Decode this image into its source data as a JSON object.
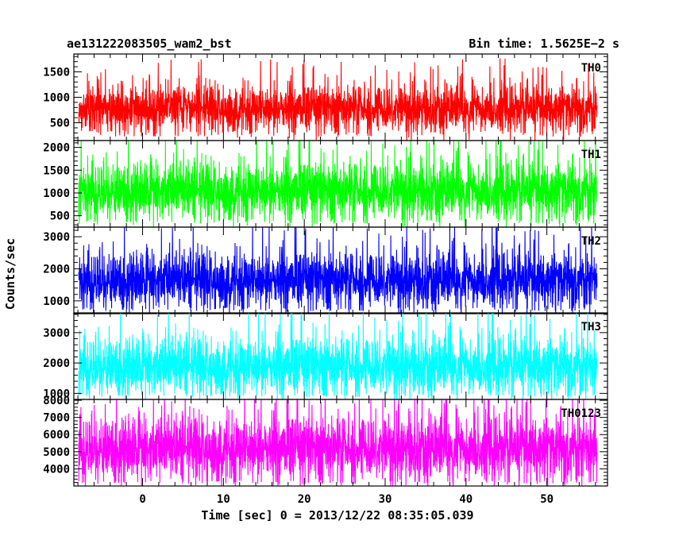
{
  "header": {
    "left_title": "ae131222083505_wam2_bst",
    "right_title": "Bin time: 1.5625E−2 s"
  },
  "axes": {
    "xlabel": "Time [sec] 0 = 2013/12/22 08:35:05.039",
    "ylabel": "Counts/sec"
  },
  "chart_data": {
    "type": "line",
    "x_range": [
      -8.5,
      57.5
    ],
    "x_data_range": [
      -7.9,
      56.2
    ],
    "x_ticks": [
      0,
      10,
      20,
      30,
      40,
      50
    ],
    "x_tick_labels": [
      "0",
      "10",
      "20",
      "30",
      "40",
      "50"
    ],
    "bin_time_s": 0.015625,
    "grid": false,
    "panels": [
      {
        "name": "TH0",
        "color": "#ff0000",
        "ylim": [
          150,
          1850
        ],
        "ytick_labels": [
          "500",
          "1000",
          "1500"
        ],
        "mean": 780,
        "noise_sd": 220,
        "lower_spike": 350
      },
      {
        "name": "TH1",
        "color": "#00ff00",
        "ylim": [
          250,
          2150
        ],
        "ytick_labels": [
          "500",
          "1000",
          "1500",
          "2000"
        ],
        "mean": 1050,
        "noise_sd": 300,
        "lower_spike": 430
      },
      {
        "name": "TH2",
        "color": "#0000ff",
        "ylim": [
          600,
          3300
        ],
        "ytick_labels": [
          "1000",
          "2000",
          "3000"
        ],
        "mean": 1650,
        "noise_sd": 420,
        "lower_spike": 800
      },
      {
        "name": "TH3",
        "color": "#00ffff",
        "ylim": [
          800,
          3650
        ],
        "ytick_labels": [
          "1000",
          "2000",
          "3000"
        ],
        "mean": 1900,
        "noise_sd": 460,
        "lower_spike": 1000
      },
      {
        "name": "TH0123",
        "color": "#ff00ff",
        "ylim": [
          3000,
          8050
        ],
        "ytick_labels": [
          "4000",
          "5000",
          "6000",
          "7000",
          "8000"
        ],
        "mean": 5200,
        "noise_sd": 900,
        "lower_spike": 3300
      }
    ]
  }
}
